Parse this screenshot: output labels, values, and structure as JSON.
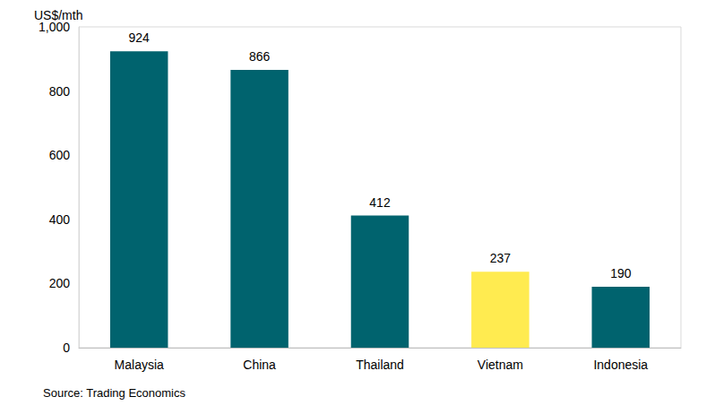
{
  "chart_data": {
    "type": "bar",
    "ylabel": "US$/mth",
    "source": "Source: Trading Economics",
    "categories": [
      "Malaysia",
      "China",
      "Thailand",
      "Vietnam",
      "Indonesia"
    ],
    "values": [
      924,
      866,
      412,
      237,
      190
    ],
    "colors": [
      "#00636e",
      "#00636e",
      "#00636e",
      "#ffeb50",
      "#00636e"
    ],
    "ylim": [
      0,
      1000
    ],
    "yticks": [
      0,
      200,
      400,
      600,
      800,
      {
        "value": 1000,
        "label": "1,000"
      }
    ],
    "grid": false,
    "data_labels": true
  }
}
